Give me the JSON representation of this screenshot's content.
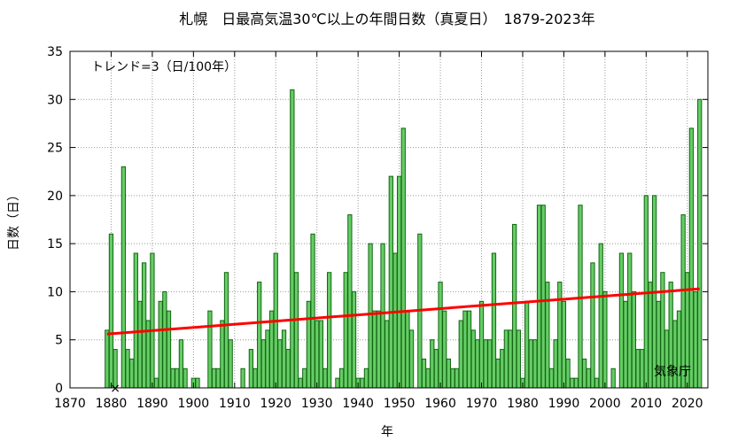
{
  "chart_data": {
    "type": "bar",
    "title": "札幌　日最高気温30℃以上の年間日数（真夏日）　1879-2023年",
    "xlabel": "年",
    "ylabel": "日数（日）",
    "trend_label": "トレンド=3（日/100年）",
    "source_label": "気象庁",
    "missing_marker": "×",
    "missing_year": 1881,
    "xlim": [
      1870,
      2025
    ],
    "ylim": [
      0,
      35
    ],
    "x_ticks": [
      1870,
      1880,
      1890,
      1900,
      1910,
      1920,
      1930,
      1940,
      1950,
      1960,
      1970,
      1980,
      1990,
      2000,
      2010,
      2020
    ],
    "y_ticks": [
      0,
      5,
      10,
      15,
      20,
      25,
      30,
      35
    ],
    "grid": true,
    "years": [
      1879,
      1880,
      1881,
      1882,
      1883,
      1884,
      1885,
      1886,
      1887,
      1888,
      1889,
      1890,
      1891,
      1892,
      1893,
      1894,
      1895,
      1896,
      1897,
      1898,
      1899,
      1900,
      1901,
      1902,
      1903,
      1904,
      1905,
      1906,
      1907,
      1908,
      1909,
      1910,
      1911,
      1912,
      1913,
      1914,
      1915,
      1916,
      1917,
      1918,
      1919,
      1920,
      1921,
      1922,
      1923,
      1924,
      1925,
      1926,
      1927,
      1928,
      1929,
      1930,
      1931,
      1932,
      1933,
      1934,
      1935,
      1936,
      1937,
      1938,
      1939,
      1940,
      1941,
      1942,
      1943,
      1944,
      1945,
      1946,
      1947,
      1948,
      1949,
      1950,
      1951,
      1952,
      1953,
      1954,
      1955,
      1956,
      1957,
      1958,
      1959,
      1960,
      1961,
      1962,
      1963,
      1964,
      1965,
      1966,
      1967,
      1968,
      1969,
      1970,
      1971,
      1972,
      1973,
      1974,
      1975,
      1976,
      1977,
      1978,
      1979,
      1980,
      1981,
      1982,
      1983,
      1984,
      1985,
      1986,
      1987,
      1988,
      1989,
      1990,
      1991,
      1992,
      1993,
      1994,
      1995,
      1996,
      1997,
      1998,
      1999,
      2000,
      2001,
      2002,
      2003,
      2004,
      2005,
      2006,
      2007,
      2008,
      2009,
      2010,
      2011,
      2012,
      2013,
      2014,
      2015,
      2016,
      2017,
      2018,
      2019,
      2020,
      2021,
      2022,
      2023
    ],
    "values": [
      6,
      16,
      4,
      0,
      23,
      4,
      3,
      14,
      9,
      13,
      7,
      14,
      1,
      9,
      10,
      8,
      2,
      2,
      5,
      2,
      0,
      1,
      1,
      0,
      0,
      8,
      2,
      2,
      7,
      12,
      5,
      0,
      0,
      2,
      0,
      4,
      2,
      11,
      5,
      6,
      8,
      14,
      5,
      6,
      4,
      31,
      12,
      1,
      2,
      9,
      16,
      7,
      7,
      2,
      12,
      0,
      1,
      2,
      12,
      18,
      10,
      1,
      1,
      2,
      15,
      8,
      8,
      15,
      7,
      22,
      14,
      22,
      27,
      8,
      6,
      0,
      16,
      3,
      2,
      5,
      4,
      11,
      8,
      3,
      2,
      2,
      7,
      8,
      8,
      6,
      5,
      9,
      5,
      5,
      14,
      3,
      4,
      6,
      6,
      17,
      6,
      1,
      9,
      5,
      5,
      19,
      19,
      11,
      2,
      5,
      11,
      9,
      3,
      1,
      1,
      19,
      3,
      2,
      13,
      1,
      15,
      10,
      0,
      2,
      0,
      14,
      9,
      14,
      10,
      4,
      4,
      20,
      11,
      20,
      9,
      12,
      6,
      11,
      7,
      8,
      18,
      12,
      27,
      10,
      30
    ],
    "trend": {
      "x": [
        1879,
        2023
      ],
      "y": [
        5.6,
        10.3
      ]
    },
    "colors": {
      "bar_fill": "#66cc66",
      "bar_stroke": "#116611",
      "trend": "#ff0000"
    }
  }
}
